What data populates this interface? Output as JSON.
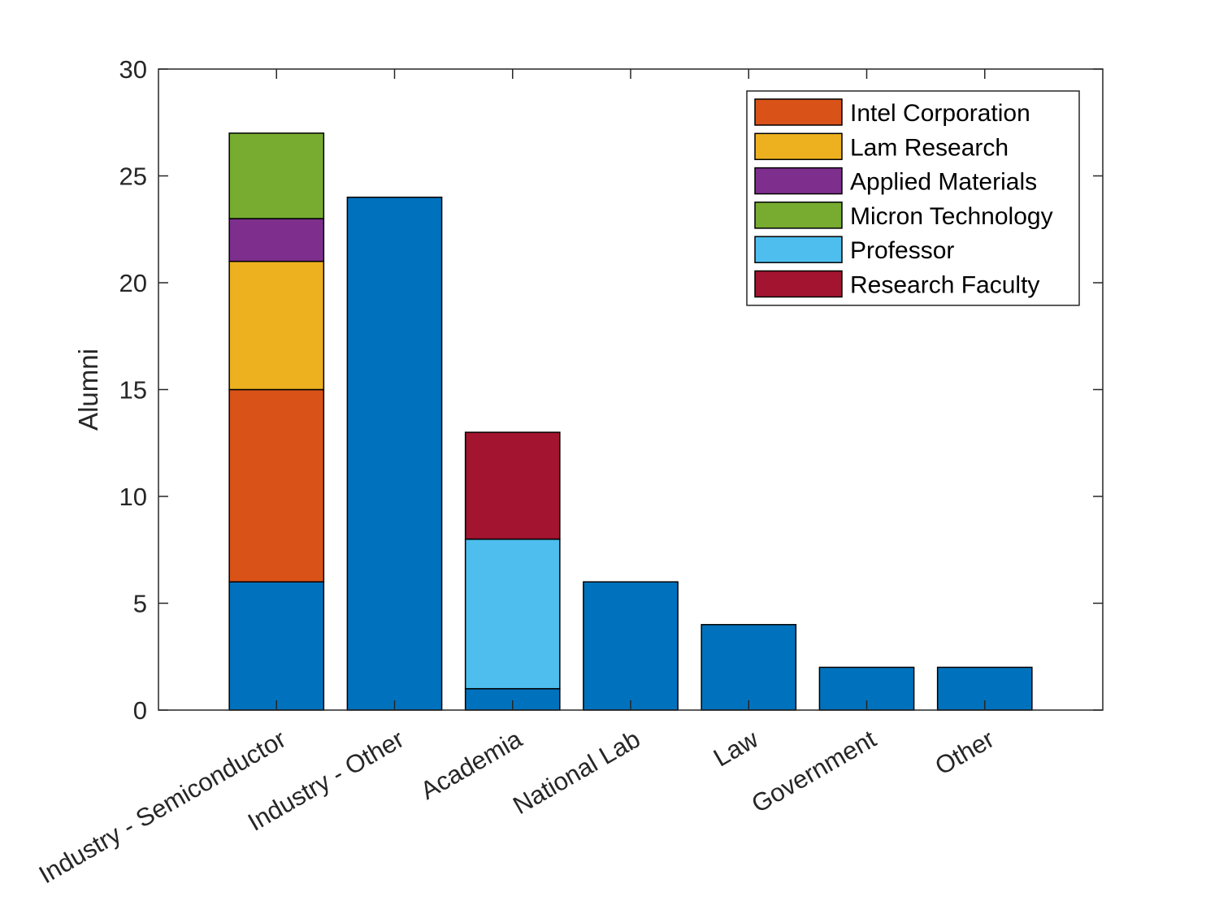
{
  "chart_data": {
    "type": "bar",
    "stacked": true,
    "categories": [
      "Industry - Semiconductor",
      "Industry - Other",
      "Academia",
      "National Lab",
      "Law",
      "Government",
      "Other"
    ],
    "series": [
      {
        "values": [
          6,
          24,
          1,
          6,
          4,
          2,
          2
        ],
        "color": "#0072BD"
      },
      {
        "name": "Intel Corporation",
        "values": [
          9,
          0,
          0,
          0,
          0,
          0,
          0
        ],
        "color": "#D95319"
      },
      {
        "name": "Lam Research",
        "values": [
          6,
          0,
          0,
          0,
          0,
          0,
          0
        ],
        "color": "#EDB120"
      },
      {
        "name": "Applied Materials",
        "values": [
          2,
          0,
          0,
          0,
          0,
          0,
          0
        ],
        "color": "#7E2F8E"
      },
      {
        "name": "Micron Technology",
        "values": [
          4,
          0,
          0,
          0,
          0,
          0,
          0
        ],
        "color": "#77AC30"
      },
      {
        "name": "Professor",
        "values": [
          0,
          0,
          7,
          0,
          0,
          0,
          0
        ],
        "color": "#4DBEEE"
      },
      {
        "name": "Research Faculty",
        "values": [
          0,
          0,
          5,
          0,
          0,
          0,
          0
        ],
        "color": "#A2142F"
      }
    ],
    "ylabel": "Alumni",
    "ylim": [
      0,
      30
    ],
    "yticks": [
      0,
      5,
      10,
      15,
      20,
      25,
      30
    ],
    "grid": false,
    "legend_position": "top-right"
  }
}
